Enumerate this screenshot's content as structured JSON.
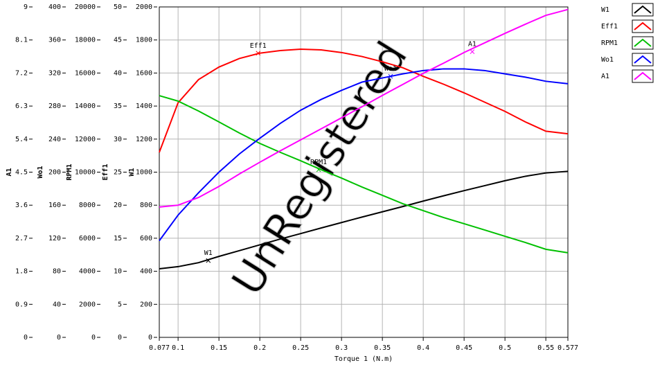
{
  "chart_data": {
    "type": "line",
    "x_label": "Torque 1 (N.m)",
    "watermark": "UnRegistered",
    "xlim": [
      0.077,
      0.577
    ],
    "xticks": [
      0.077,
      0.1,
      0.15,
      0.2,
      0.25,
      0.3,
      0.35,
      0.4,
      0.45,
      0.5,
      0.55,
      0.577
    ],
    "grid": true,
    "y_axes": [
      {
        "label": "A1",
        "lim": [
          0,
          9
        ],
        "ticks": [
          0,
          0.9,
          1.8,
          2.7,
          3.6,
          4.5,
          5.4,
          6.3,
          7.2,
          8.1,
          9
        ]
      },
      {
        "label": "Wo1",
        "lim": [
          0,
          400
        ],
        "ticks": [
          0,
          40,
          80,
          120,
          160,
          200,
          240,
          280,
          320,
          360,
          400
        ]
      },
      {
        "label": "RPM1",
        "lim": [
          0,
          20000
        ],
        "ticks": [
          0,
          2000,
          4000,
          6000,
          8000,
          10000,
          12000,
          14000,
          16000,
          18000,
          20000
        ]
      },
      {
        "label": "Eff1",
        "lim": [
          0,
          50
        ],
        "ticks": [
          0,
          5,
          10,
          15,
          20,
          25,
          30,
          35,
          40,
          45,
          50
        ]
      },
      {
        "label": "W1",
        "lim": [
          0,
          2000
        ],
        "ticks": [
          0,
          200,
          400,
          600,
          800,
          1000,
          1200,
          1400,
          1600,
          1800,
          2000
        ]
      }
    ],
    "x": [
      0.077,
      0.1,
      0.125,
      0.15,
      0.175,
      0.2,
      0.225,
      0.25,
      0.275,
      0.3,
      0.325,
      0.35,
      0.375,
      0.4,
      0.425,
      0.45,
      0.475,
      0.5,
      0.525,
      0.55,
      0.577
    ],
    "series": [
      {
        "name": "W1",
        "color": "#000000",
        "axis": 4,
        "values": [
          415,
          428,
          452,
          490,
          525,
          560,
          595,
          628,
          662,
          695,
          728,
          760,
          792,
          825,
          857,
          888,
          918,
          948,
          975,
          995,
          1005
        ]
      },
      {
        "name": "Eff1",
        "color": "#ff0000",
        "axis": 3,
        "values": [
          28,
          35.5,
          39,
          40.9,
          42.2,
          43,
          43.4,
          43.6,
          43.5,
          43.1,
          42.5,
          41.7,
          40.8,
          39.5,
          38.3,
          37,
          35.6,
          34.2,
          32.6,
          31.2,
          30.8
        ]
      },
      {
        "name": "RPM1",
        "color": "#00c000",
        "axis": 2,
        "values": [
          14630,
          14300,
          13700,
          13040,
          12370,
          11740,
          11200,
          10690,
          10150,
          9640,
          9100,
          8600,
          8090,
          7670,
          7250,
          6880,
          6500,
          6120,
          5740,
          5330,
          5120
        ]
      },
      {
        "name": "Wo1",
        "color": "#0000ff",
        "axis": 1,
        "values": [
          117,
          148,
          175,
          200,
          222,
          241,
          259,
          275,
          288,
          299,
          309,
          314,
          319,
          323,
          325,
          325,
          323,
          319,
          315,
          310,
          307
        ]
      },
      {
        "name": "A1",
        "color": "#ff00ff",
        "axis": 0,
        "values": [
          3.55,
          3.6,
          3.81,
          4.11,
          4.45,
          4.77,
          5.08,
          5.38,
          5.68,
          5.98,
          6.28,
          6.59,
          6.89,
          7.19,
          7.47,
          7.76,
          8.02,
          8.28,
          8.53,
          8.77,
          8.93
        ]
      }
    ],
    "annotations": [
      {
        "text": "W1",
        "series": 0,
        "x": 0.137,
        "y": 465
      },
      {
        "text": "Eff1",
        "series": 1,
        "x": 0.198,
        "y": 43
      },
      {
        "text": "RPM1",
        "series": 2,
        "x": 0.272,
        "y": 10150
      },
      {
        "text": "Wo1",
        "series": 3,
        "x": 0.36,
        "y": 316
      },
      {
        "text": "A1",
        "series": 4,
        "x": 0.46,
        "y": 7.78
      }
    ]
  }
}
